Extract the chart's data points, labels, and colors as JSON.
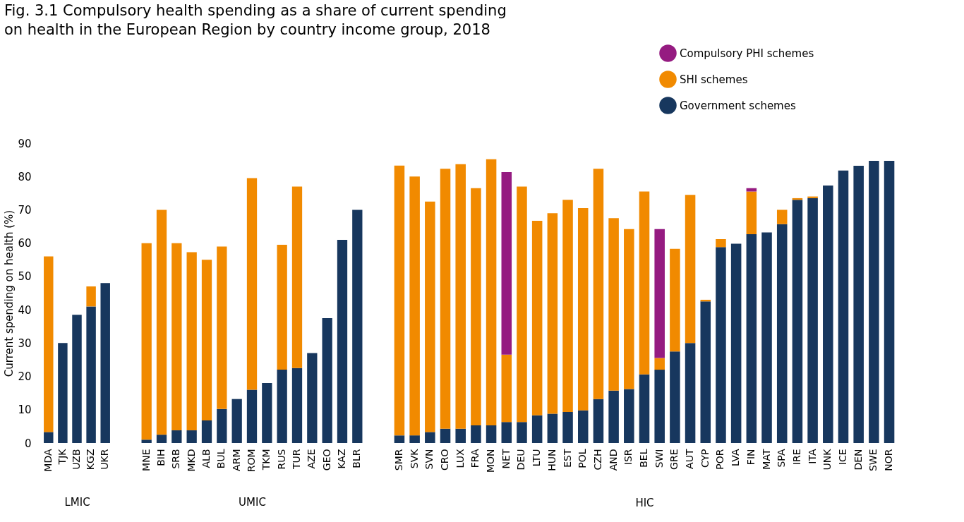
{
  "chart_data": [
    {
      "type": "bar",
      "title": "Fig. 3.1 Compulsory health spending as a share of current spending on health in the European Region by country income group, 2018",
      "ylabel": "Current spending on health (%)",
      "xlabel": "LMIC",
      "stacked": true,
      "ylim": [
        0,
        90
      ],
      "yticks": [
        0,
        10,
        20,
        30,
        40,
        50,
        60,
        70,
        80,
        90
      ],
      "grid": false,
      "categories": [
        "MDA",
        "TJK",
        "UZB",
        "KGZ",
        "UKR"
      ],
      "series": [
        {
          "color": "#17375e",
          "values": [
            3.3,
            30,
            38.5,
            41,
            48
          ]
        },
        {
          "color": "#f18a00",
          "values": [
            52.7,
            null,
            null,
            6,
            null
          ]
        }
      ]
    },
    {
      "type": "bar",
      "xlabel": "UMIC",
      "stacked": true,
      "ylim": [
        0,
        90
      ],
      "yticks": [
        0,
        10,
        20,
        30,
        40,
        50,
        60,
        70,
        80,
        90
      ],
      "tick_labels": "x",
      "grid": false,
      "categories": [
        "MNE",
        "BIH",
        "SRB",
        "MKD",
        "ALB",
        "BUL",
        "ARM",
        "ROM",
        "TKM",
        "RUS",
        "TUR",
        "AZE",
        "GEO",
        "KAZ",
        "BLR"
      ],
      "series": [
        {
          "color": "#17375e",
          "values": [
            1,
            2.5,
            3.8,
            3.8,
            6.8,
            10.2,
            13.2,
            16,
            18,
            22,
            22.5,
            27,
            37.5,
            61,
            70
          ]
        },
        {
          "color": "#f18a00",
          "values": [
            59,
            67.5,
            56.2,
            53.5,
            48.2,
            48.8,
            null,
            63.5,
            null,
            37.5,
            54.5,
            null,
            null,
            null,
            null
          ]
        }
      ]
    },
    {
      "type": "bar",
      "xlabel": "HIC",
      "stacked": true,
      "ylim": [
        0,
        90
      ],
      "yticks": [
        0,
        10,
        20,
        30,
        40,
        50,
        60,
        70,
        80,
        90
      ],
      "tick_labels": "x",
      "grid": false,
      "legend": "top right",
      "categories": [
        "SMR",
        "SVK",
        "SVN",
        "CRO",
        "LUX",
        "FRA",
        "MON",
        "NET",
        "DEU",
        "LTU",
        "HUN",
        "EST",
        "POL",
        "CZH",
        "AND",
        "ISR",
        "BEL",
        "SWI",
        "GRE",
        "AUT",
        "CYP",
        "POR",
        "LVA",
        "FIN",
        "MAT",
        "SPA",
        "IRE",
        "ITA",
        "UNK",
        "ICE",
        "DEN",
        "SWE",
        "NOR"
      ],
      "series": [
        {
          "name": "Government schemes",
          "color": "#17375e",
          "values": [
            2.3,
            2.3,
            3.3,
            4.3,
            4.3,
            5.3,
            5.3,
            6.3,
            6.3,
            8.3,
            8.8,
            9.3,
            9.8,
            13.2,
            15.7,
            16.2,
            20.6,
            22,
            27.5,
            30,
            42.5,
            58.8,
            59.8,
            62.7,
            63.2,
            65.7,
            73,
            73.5,
            77.3,
            81.8,
            83.2,
            84.7,
            84.7
          ]
        },
        {
          "name": "SHI schemes",
          "color": "#f18a00",
          "values": [
            81,
            77.7,
            69.2,
            78,
            79.4,
            71.2,
            79.9,
            20.2,
            70.7,
            58.4,
            60.2,
            63.7,
            60.7,
            69.1,
            51.8,
            48,
            54.9,
            3.5,
            30.8,
            44.5,
            0.5,
            2.4,
            null,
            12.8,
            null,
            4.3,
            0.5,
            0.5,
            null,
            null,
            null,
            null,
            null
          ]
        },
        {
          "name": "Compulsory PHI schemes",
          "color": "#951b81",
          "values": [
            null,
            null,
            null,
            null,
            null,
            null,
            null,
            54.8,
            null,
            null,
            null,
            null,
            null,
            null,
            null,
            null,
            null,
            38.7,
            null,
            null,
            null,
            null,
            null,
            1,
            null,
            null,
            null,
            null,
            null,
            null,
            null,
            null,
            null
          ]
        }
      ]
    }
  ]
}
